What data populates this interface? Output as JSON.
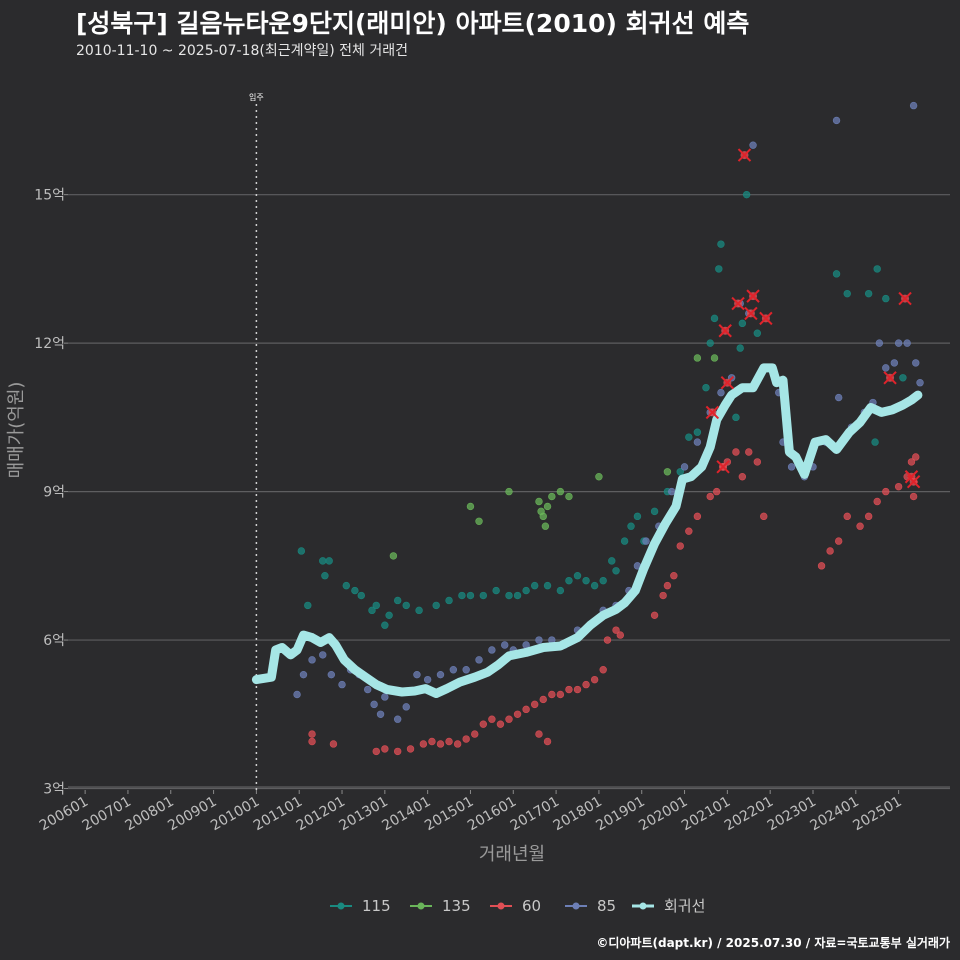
{
  "title": "[성북구] 길음뉴타운9단지(래미안) 아파트(2010) 회귀선 예측",
  "subtitle": "2010-11-10 ~ 2025-07-18(최근계약일) 전체 거래건",
  "caption": "©디아파트(dapt.kr) / 2025.07.30 / 자료=국토교통부 실거래가",
  "chart_data": {
    "type": "scatter",
    "xlabel": "거래년월",
    "ylabel": "매매가(억원)",
    "x_tick_labels": [
      "200601",
      "200701",
      "200801",
      "200901",
      "201001",
      "201101",
      "201201",
      "201301",
      "201401",
      "201501",
      "201601",
      "201701",
      "201801",
      "201901",
      "202001",
      "202101",
      "202201",
      "202301",
      "202401",
      "202501"
    ],
    "y_ticks": [
      3,
      6,
      9,
      12,
      15
    ],
    "y_tick_labels": [
      "3억",
      "6억",
      "9억",
      "12억",
      "15억"
    ],
    "xlim": [
      2005.6,
      2026.2
    ],
    "ylim": [
      2.97,
      17.6
    ],
    "grid": "horizontal",
    "annotation": {
      "label": "입주",
      "x": 2010.0
    },
    "legend_position": "bottom",
    "legend": [
      {
        "name": "115",
        "color": "#1a8a80"
      },
      {
        "name": "135",
        "color": "#6ab55a"
      },
      {
        "name": "60",
        "color": "#e04f55"
      },
      {
        "name": "85",
        "color": "#6d7fb6"
      },
      {
        "name": "회귀선",
        "color": "#a6e6e6"
      }
    ],
    "series": [
      {
        "name": "115",
        "color": "#1a8a80",
        "points": [
          [
            2011.05,
            7.8
          ],
          [
            2011.2,
            6.7
          ],
          [
            2011.55,
            7.6
          ],
          [
            2011.6,
            7.3
          ],
          [
            2011.7,
            7.6
          ],
          [
            2012.1,
            7.1
          ],
          [
            2012.3,
            7.0
          ],
          [
            2012.45,
            6.9
          ],
          [
            2012.7,
            6.6
          ],
          [
            2012.8,
            6.7
          ],
          [
            2013.0,
            6.3
          ],
          [
            2013.1,
            6.5
          ],
          [
            2013.3,
            6.8
          ],
          [
            2013.5,
            6.7
          ],
          [
            2013.8,
            6.6
          ],
          [
            2014.2,
            6.7
          ],
          [
            2014.5,
            6.8
          ],
          [
            2014.8,
            6.9
          ],
          [
            2015.0,
            6.9
          ],
          [
            2015.3,
            6.9
          ],
          [
            2015.6,
            7.0
          ],
          [
            2015.9,
            6.9
          ],
          [
            2016.1,
            6.9
          ],
          [
            2016.3,
            7.0
          ],
          [
            2016.5,
            7.1
          ],
          [
            2016.8,
            7.1
          ],
          [
            2017.1,
            7.0
          ],
          [
            2017.3,
            7.2
          ],
          [
            2017.5,
            7.3
          ],
          [
            2017.7,
            7.2
          ],
          [
            2017.9,
            7.1
          ],
          [
            2018.1,
            7.2
          ],
          [
            2018.3,
            7.6
          ],
          [
            2018.4,
            7.4
          ],
          [
            2018.6,
            8.0
          ],
          [
            2018.75,
            8.3
          ],
          [
            2018.9,
            8.5
          ],
          [
            2019.05,
            8.0
          ],
          [
            2019.3,
            8.6
          ],
          [
            2019.6,
            9.0
          ],
          [
            2019.9,
            9.4
          ],
          [
            2020.1,
            10.1
          ],
          [
            2020.3,
            10.2
          ],
          [
            2020.5,
            11.1
          ],
          [
            2020.6,
            12.0
          ],
          [
            2020.7,
            12.5
          ],
          [
            2020.8,
            13.5
          ],
          [
            2020.85,
            14.0
          ],
          [
            2021.2,
            10.5
          ],
          [
            2021.3,
            11.9
          ],
          [
            2021.35,
            12.4
          ],
          [
            2021.45,
            15.0
          ],
          [
            2021.7,
            12.2
          ],
          [
            2023.55,
            13.4
          ],
          [
            2023.8,
            13.0
          ],
          [
            2024.3,
            13.0
          ],
          [
            2024.5,
            13.5
          ],
          [
            2024.7,
            12.9
          ],
          [
            2024.45,
            10.0
          ],
          [
            2025.1,
            11.3
          ]
        ]
      },
      {
        "name": "135",
        "color": "#6ab55a",
        "points": [
          [
            2013.2,
            7.7
          ],
          [
            2015.0,
            8.7
          ],
          [
            2015.2,
            8.4
          ],
          [
            2015.9,
            9.0
          ],
          [
            2016.6,
            8.8
          ],
          [
            2016.65,
            8.6
          ],
          [
            2016.7,
            8.5
          ],
          [
            2016.75,
            8.3
          ],
          [
            2016.8,
            8.7
          ],
          [
            2016.9,
            8.9
          ],
          [
            2017.1,
            9.0
          ],
          [
            2017.3,
            8.9
          ],
          [
            2018.0,
            9.3
          ],
          [
            2019.6,
            9.4
          ],
          [
            2020.3,
            11.7
          ],
          [
            2020.7,
            11.7
          ]
        ]
      },
      {
        "name": "60",
        "color": "#e04f55",
        "points": [
          [
            2011.3,
            4.1
          ],
          [
            2011.3,
            3.95
          ],
          [
            2011.8,
            3.9
          ],
          [
            2012.8,
            3.75
          ],
          [
            2013.0,
            3.8
          ],
          [
            2013.3,
            3.75
          ],
          [
            2013.6,
            3.8
          ],
          [
            2013.9,
            3.9
          ],
          [
            2014.1,
            3.95
          ],
          [
            2014.3,
            3.9
          ],
          [
            2014.5,
            3.95
          ],
          [
            2014.7,
            3.9
          ],
          [
            2014.9,
            4.0
          ],
          [
            2015.1,
            4.1
          ],
          [
            2015.3,
            4.3
          ],
          [
            2015.5,
            4.4
          ],
          [
            2015.7,
            4.3
          ],
          [
            2015.9,
            4.4
          ],
          [
            2016.1,
            4.5
          ],
          [
            2016.3,
            4.6
          ],
          [
            2016.5,
            4.7
          ],
          [
            2016.7,
            4.8
          ],
          [
            2016.9,
            4.9
          ],
          [
            2017.1,
            4.9
          ],
          [
            2017.3,
            5.0
          ],
          [
            2017.5,
            5.0
          ],
          [
            2017.7,
            5.1
          ],
          [
            2017.9,
            5.2
          ],
          [
            2018.1,
            5.4
          ],
          [
            2016.6,
            4.1
          ],
          [
            2016.8,
            3.95
          ],
          [
            2018.2,
            6.0
          ],
          [
            2018.4,
            6.2
          ],
          [
            2018.5,
            6.1
          ],
          [
            2019.3,
            6.5
          ],
          [
            2019.5,
            6.9
          ],
          [
            2019.6,
            7.1
          ],
          [
            2019.75,
            7.3
          ],
          [
            2019.9,
            7.9
          ],
          [
            2020.1,
            8.2
          ],
          [
            2020.3,
            8.5
          ],
          [
            2020.6,
            8.9
          ],
          [
            2020.75,
            9.0
          ],
          [
            2020.9,
            9.5
          ],
          [
            2021.0,
            9.6
          ],
          [
            2021.2,
            9.8
          ],
          [
            2021.35,
            9.3
          ],
          [
            2021.5,
            9.8
          ],
          [
            2021.7,
            9.6
          ],
          [
            2021.85,
            8.5
          ],
          [
            2023.2,
            7.5
          ],
          [
            2023.4,
            7.8
          ],
          [
            2023.6,
            8.0
          ],
          [
            2023.8,
            8.5
          ],
          [
            2024.1,
            8.3
          ],
          [
            2024.3,
            8.5
          ],
          [
            2024.5,
            8.8
          ],
          [
            2024.7,
            9.0
          ],
          [
            2025.0,
            9.1
          ],
          [
            2025.2,
            9.3
          ],
          [
            2025.3,
            9.6
          ],
          [
            2025.35,
            8.9
          ],
          [
            2025.4,
            9.7
          ]
        ]
      },
      {
        "name": "85",
        "color": "#6d7fb6",
        "points": [
          [
            2010.95,
            4.9
          ],
          [
            2011.1,
            5.3
          ],
          [
            2011.3,
            5.6
          ],
          [
            2011.55,
            5.7
          ],
          [
            2011.75,
            5.3
          ],
          [
            2012.0,
            5.1
          ],
          [
            2012.2,
            5.4
          ],
          [
            2012.4,
            5.3
          ],
          [
            2012.6,
            5.0
          ],
          [
            2012.75,
            4.7
          ],
          [
            2012.9,
            4.5
          ],
          [
            2013.0,
            4.85
          ],
          [
            2013.3,
            4.4
          ],
          [
            2013.5,
            4.65
          ],
          [
            2013.75,
            5.3
          ],
          [
            2014.0,
            5.2
          ],
          [
            2014.3,
            5.3
          ],
          [
            2014.6,
            5.4
          ],
          [
            2014.9,
            5.4
          ],
          [
            2015.2,
            5.6
          ],
          [
            2015.5,
            5.8
          ],
          [
            2015.8,
            5.9
          ],
          [
            2016.0,
            5.8
          ],
          [
            2016.3,
            5.9
          ],
          [
            2016.6,
            6.0
          ],
          [
            2016.9,
            6.0
          ],
          [
            2017.2,
            5.9
          ],
          [
            2017.5,
            6.2
          ],
          [
            2017.8,
            6.3
          ],
          [
            2018.1,
            6.6
          ],
          [
            2018.4,
            6.7
          ],
          [
            2018.7,
            7.0
          ],
          [
            2018.9,
            7.5
          ],
          [
            2019.1,
            8.0
          ],
          [
            2019.4,
            8.3
          ],
          [
            2019.7,
            9.0
          ],
          [
            2020.0,
            9.5
          ],
          [
            2020.3,
            10.0
          ],
          [
            2020.6,
            10.6
          ],
          [
            2020.85,
            11.0
          ],
          [
            2021.1,
            11.3
          ],
          [
            2021.3,
            12.8
          ],
          [
            2021.5,
            12.6
          ],
          [
            2021.6,
            16.0
          ],
          [
            2022.2,
            11.0
          ],
          [
            2022.3,
            10.0
          ],
          [
            2022.5,
            9.5
          ],
          [
            2022.8,
            9.3
          ],
          [
            2023.0,
            9.5
          ],
          [
            2023.3,
            10.0
          ],
          [
            2023.55,
            16.5
          ],
          [
            2023.6,
            10.9
          ],
          [
            2023.9,
            10.3
          ],
          [
            2024.2,
            10.6
          ],
          [
            2024.4,
            10.8
          ],
          [
            2024.55,
            12.0
          ],
          [
            2024.7,
            11.5
          ],
          [
            2024.9,
            11.6
          ],
          [
            2025.0,
            12.0
          ],
          [
            2025.2,
            12.0
          ],
          [
            2025.35,
            16.8
          ],
          [
            2025.4,
            11.6
          ],
          [
            2025.5,
            11.2
          ]
        ]
      }
    ],
    "highlighted": {
      "color": "#e0232b",
      "points": [
        [
          2020.65,
          10.6
        ],
        [
          2020.9,
          9.5
        ],
        [
          2020.95,
          12.25
        ],
        [
          2021.0,
          11.2
        ],
        [
          2021.25,
          12.8
        ],
        [
          2021.4,
          15.8
        ],
        [
          2021.55,
          12.6
        ],
        [
          2021.6,
          12.95
        ],
        [
          2021.9,
          12.5
        ],
        [
          2024.8,
          11.3
        ],
        [
          2025.15,
          12.9
        ],
        [
          2025.3,
          9.3
        ],
        [
          2025.35,
          9.2
        ]
      ]
    },
    "regression": {
      "name": "회귀선",
      "color": "#a6e6e6",
      "points": [
        [
          2010.0,
          5.2
        ],
        [
          2010.35,
          5.25
        ],
        [
          2010.45,
          5.8
        ],
        [
          2010.6,
          5.85
        ],
        [
          2010.8,
          5.7
        ],
        [
          2010.95,
          5.8
        ],
        [
          2011.1,
          6.1
        ],
        [
          2011.3,
          6.05
        ],
        [
          2011.5,
          5.95
        ],
        [
          2011.7,
          6.05
        ],
        [
          2011.85,
          5.9
        ],
        [
          2012.05,
          5.6
        ],
        [
          2012.3,
          5.4
        ],
        [
          2012.55,
          5.25
        ],
        [
          2012.8,
          5.1
        ],
        [
          2013.05,
          5.0
        ],
        [
          2013.4,
          4.95
        ],
        [
          2013.7,
          4.97
        ],
        [
          2013.95,
          5.02
        ],
        [
          2014.2,
          4.92
        ],
        [
          2014.45,
          5.02
        ],
        [
          2014.75,
          5.15
        ],
        [
          2015.1,
          5.25
        ],
        [
          2015.4,
          5.35
        ],
        [
          2015.65,
          5.5
        ],
        [
          2015.9,
          5.68
        ],
        [
          2016.3,
          5.75
        ],
        [
          2016.7,
          5.85
        ],
        [
          2017.1,
          5.88
        ],
        [
          2017.5,
          6.05
        ],
        [
          2017.8,
          6.3
        ],
        [
          2018.1,
          6.5
        ],
        [
          2018.4,
          6.62
        ],
        [
          2018.6,
          6.75
        ],
        [
          2018.85,
          7.0
        ],
        [
          2019.05,
          7.45
        ],
        [
          2019.3,
          7.95
        ],
        [
          2019.55,
          8.35
        ],
        [
          2019.8,
          8.7
        ],
        [
          2019.95,
          9.25
        ],
        [
          2020.15,
          9.3
        ],
        [
          2020.4,
          9.5
        ],
        [
          2020.6,
          9.9
        ],
        [
          2020.75,
          10.45
        ],
        [
          2020.95,
          10.75
        ],
        [
          2021.1,
          10.95
        ],
        [
          2021.35,
          11.1
        ],
        [
          2021.6,
          11.1
        ],
        [
          2021.85,
          11.5
        ],
        [
          2022.05,
          11.5
        ],
        [
          2022.15,
          11.2
        ],
        [
          2022.3,
          11.25
        ],
        [
          2022.45,
          9.8
        ],
        [
          2022.6,
          9.7
        ],
        [
          2022.8,
          9.35
        ],
        [
          2023.05,
          10.0
        ],
        [
          2023.3,
          10.05
        ],
        [
          2023.55,
          9.85
        ],
        [
          2023.85,
          10.2
        ],
        [
          2024.1,
          10.4
        ],
        [
          2024.35,
          10.7
        ],
        [
          2024.6,
          10.6
        ],
        [
          2024.85,
          10.65
        ],
        [
          2025.1,
          10.75
        ],
        [
          2025.3,
          10.85
        ],
        [
          2025.45,
          10.95
        ]
      ]
    }
  }
}
